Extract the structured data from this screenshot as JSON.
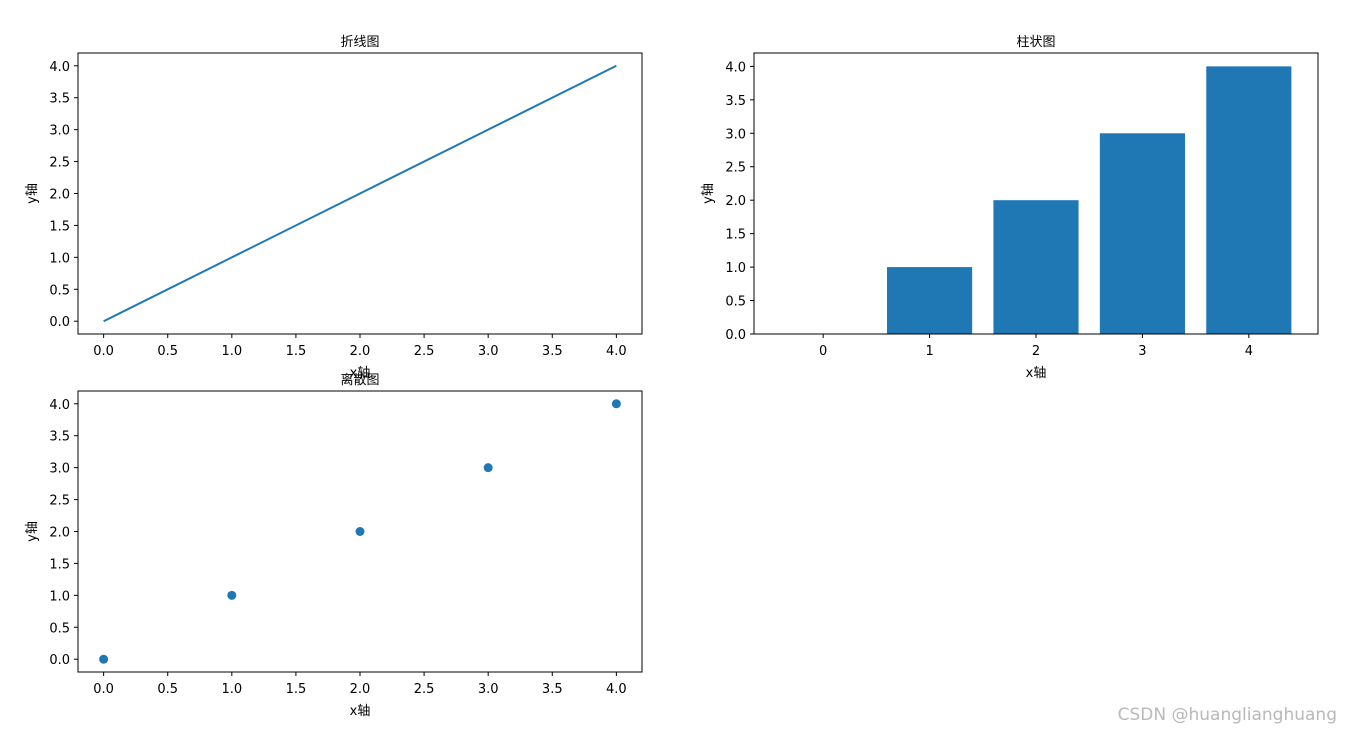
{
  "colors": {
    "series": "#1f77b4",
    "axis": "#000000",
    "background": "#ffffff"
  },
  "watermark": "CSDN @huanglianghuang",
  "chart_data": [
    {
      "type": "line",
      "title": "折线图",
      "xlabel": "x轴",
      "ylabel": "y轴",
      "x": [
        0,
        1,
        2,
        3,
        4
      ],
      "y": [
        0,
        1,
        2,
        3,
        4
      ],
      "xlim": [
        -0.2,
        4.2
      ],
      "ylim": [
        -0.2,
        4.2
      ],
      "xticks": [
        "0.0",
        "0.5",
        "1.0",
        "1.5",
        "2.0",
        "2.5",
        "3.0",
        "3.5",
        "4.0"
      ],
      "yticks": [
        "0.0",
        "0.5",
        "1.0",
        "1.5",
        "2.0",
        "2.5",
        "3.0",
        "3.5",
        "4.0"
      ],
      "grid": false,
      "legend": "none"
    },
    {
      "type": "bar",
      "title": "柱状图",
      "xlabel": "x轴",
      "ylabel": "y轴",
      "categories": [
        "0",
        "1",
        "2",
        "3",
        "4"
      ],
      "values": [
        0,
        1,
        2,
        3,
        4
      ],
      "xlim": [
        -0.65,
        4.65
      ],
      "ylim": [
        0,
        4.2
      ],
      "yticks": [
        "0.0",
        "0.5",
        "1.0",
        "1.5",
        "2.0",
        "2.5",
        "3.0",
        "3.5",
        "4.0"
      ],
      "grid": false,
      "legend": "none"
    },
    {
      "type": "scatter",
      "title": "离散图",
      "xlabel": "x轴",
      "ylabel": "y轴",
      "x": [
        0,
        1,
        2,
        3,
        4
      ],
      "y": [
        0,
        1,
        2,
        3,
        4
      ],
      "xlim": [
        -0.2,
        4.2
      ],
      "ylim": [
        -0.2,
        4.2
      ],
      "xticks": [
        "0.0",
        "0.5",
        "1.0",
        "1.5",
        "2.0",
        "2.5",
        "3.0",
        "3.5",
        "4.0"
      ],
      "yticks": [
        "0.0",
        "0.5",
        "1.0",
        "1.5",
        "2.0",
        "2.5",
        "3.0",
        "3.5",
        "4.0"
      ],
      "grid": false,
      "legend": "none"
    }
  ]
}
